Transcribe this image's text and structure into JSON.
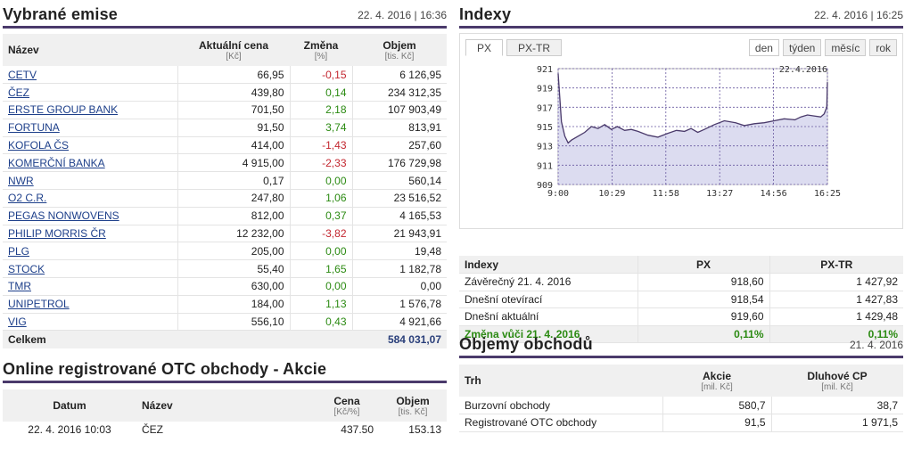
{
  "emise": {
    "title": "Vybrané emise",
    "datetime": "22. 4. 2016 | 16:36",
    "headers": {
      "name": "Název",
      "price": "Aktuální cena",
      "price_unit": "[Kč]",
      "change": "Změna",
      "change_unit": "[%]",
      "volume": "Objem",
      "volume_unit": "[tis. Kč]"
    },
    "rows": [
      {
        "name": "CETV",
        "price": "66,95",
        "change": "-0,15",
        "volume": "6 126,95"
      },
      {
        "name": "ČEZ",
        "price": "439,80",
        "change": "0,14",
        "volume": "234 312,35"
      },
      {
        "name": "ERSTE GROUP BANK",
        "price": "701,50",
        "change": "2,18",
        "volume": "107 903,49"
      },
      {
        "name": "FORTUNA",
        "price": "91,50",
        "change": "3,74",
        "volume": "813,91"
      },
      {
        "name": "KOFOLA ČS",
        "price": "414,00",
        "change": "-1,43",
        "volume": "257,60"
      },
      {
        "name": "KOMERČNÍ BANKA",
        "price": "4 915,00",
        "change": "-2,33",
        "volume": "176 729,98"
      },
      {
        "name": "NWR",
        "price": "0,17",
        "change": "0,00",
        "volume": "560,14"
      },
      {
        "name": "O2 C.R.",
        "price": "247,80",
        "change": "1,06",
        "volume": "23 516,52"
      },
      {
        "name": "PEGAS NONWOVENS",
        "price": "812,00",
        "change": "0,37",
        "volume": "4 165,53"
      },
      {
        "name": "PHILIP MORRIS ČR",
        "price": "12 232,00",
        "change": "-3,82",
        "volume": "21 943,91"
      },
      {
        "name": "PLG",
        "price": "205,00",
        "change": "0,00",
        "volume": "19,48"
      },
      {
        "name": "STOCK",
        "price": "55,40",
        "change": "1,65",
        "volume": "1 182,78"
      },
      {
        "name": "TMR",
        "price": "630,00",
        "change": "0,00",
        "volume": "0,00"
      },
      {
        "name": "UNIPETROL",
        "price": "184,00",
        "change": "1,13",
        "volume": "1 576,78"
      },
      {
        "name": "VIG",
        "price": "556,10",
        "change": "0,43",
        "volume": "4 921,66"
      }
    ],
    "total_label": "Celkem",
    "total_value": "584 031,07"
  },
  "otc": {
    "title": "Online registrované OTC obchody - Akcie",
    "headers": {
      "date": "Datum",
      "name": "Název",
      "price": "Cena",
      "price_unit": "[Kč/%]",
      "volume": "Objem",
      "volume_unit": "[tis. Kč]"
    },
    "rows": [
      {
        "date": "22. 4. 2016 10:03",
        "name": "ČEZ",
        "price": "437,50",
        "volume": "153,13"
      }
    ]
  },
  "indexy": {
    "title": "Indexy",
    "datetime": "22. 4. 2016 | 16:25",
    "tabs": [
      "PX",
      "PX-TR"
    ],
    "periods": [
      "den",
      "týden",
      "měsíc",
      "rok"
    ],
    "table": {
      "headers": [
        "Indexy",
        "PX",
        "PX-TR"
      ],
      "rows": [
        [
          "Závěrečný 21. 4. 2016",
          "918,60",
          "1 427,92"
        ],
        [
          "Dnešní otevírací",
          "918,54",
          "1 427,83"
        ],
        [
          "Dnešní aktuální",
          "919,60",
          "1 429,48"
        ]
      ],
      "change_row": [
        "Změna vůči 21. 4. 2016",
        "0,11%",
        "0,11%"
      ]
    }
  },
  "chart_data": {
    "type": "area",
    "title": "",
    "annotation": "22.4.2016",
    "x_ticks": [
      "9:00",
      "10:29",
      "11:58",
      "13:27",
      "14:56",
      "16:25"
    ],
    "y_ticks": [
      909,
      911,
      913,
      915,
      917,
      919,
      921
    ],
    "ylim": [
      909,
      921
    ],
    "grid": true,
    "x_minutes": [
      0,
      5,
      10,
      15,
      20,
      30,
      40,
      50,
      60,
      70,
      80,
      89,
      100,
      110,
      120,
      135,
      150,
      165,
      178,
      190,
      200,
      210,
      220,
      235,
      250,
      267,
      280,
      295,
      310,
      325,
      340,
      356,
      365,
      375,
      385,
      395,
      400,
      404,
      405
    ],
    "values": [
      920.5,
      915.5,
      914.0,
      913.3,
      913.6,
      914.0,
      914.4,
      915.0,
      914.8,
      915.2,
      914.7,
      915.0,
      914.6,
      914.7,
      914.5,
      914.1,
      913.9,
      914.3,
      914.6,
      914.5,
      914.8,
      914.4,
      914.7,
      915.2,
      915.6,
      915.4,
      915.1,
      915.3,
      915.4,
      915.6,
      915.8,
      915.7,
      916.0,
      916.2,
      916.1,
      916.0,
      916.3,
      917.0,
      919.6
    ],
    "colors": {
      "line": "#4a3a6b",
      "fill": "#dcdcf0",
      "grid": "#6a5aa0"
    }
  },
  "objemy": {
    "title": "Objemy obchodů",
    "date": "21. 4. 2016",
    "headers": {
      "market": "Trh",
      "stocks": "Akcie",
      "stocks_unit": "[mil. Kč]",
      "bonds": "Dluhové CP",
      "bonds_unit": "[mil. Kč]"
    },
    "rows": [
      {
        "market": "Burzovní obchody",
        "stocks": "580,7",
        "bonds": "38,7"
      },
      {
        "market": "Registrované OTC obchody",
        "stocks": "91,5",
        "bonds": "1 971,5"
      }
    ]
  }
}
